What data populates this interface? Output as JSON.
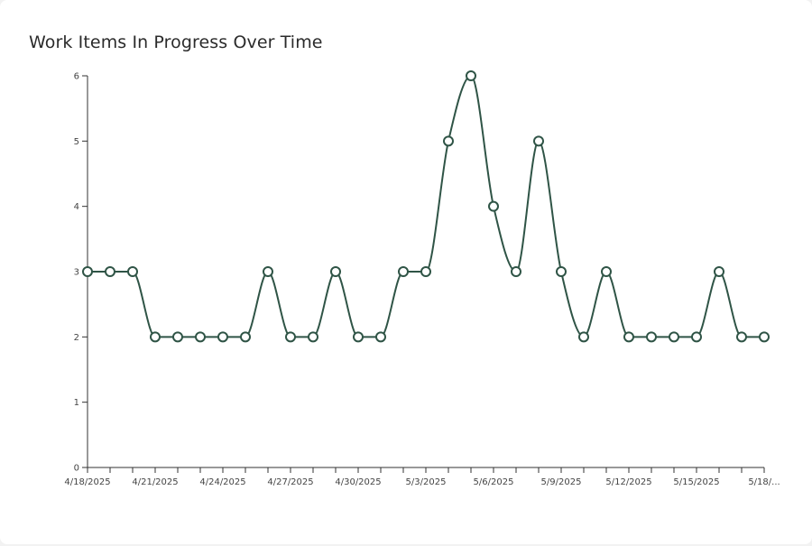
{
  "chart_data": {
    "type": "line",
    "title": "Work Items In Progress Over Time",
    "xlabel": "",
    "ylabel": "",
    "ylim": [
      0,
      6
    ],
    "y_ticks": [
      "0",
      "1",
      "2",
      "3",
      "4",
      "5",
      "6"
    ],
    "x": [
      "4/18/2025",
      "4/19/2025",
      "4/20/2025",
      "4/21/2025",
      "4/22/2025",
      "4/23/2025",
      "4/24/2025",
      "4/25/2025",
      "4/26/2025",
      "4/27/2025",
      "4/28/2025",
      "4/29/2025",
      "4/30/2025",
      "5/1/2025",
      "5/2/2025",
      "5/3/2025",
      "5/4/2025",
      "5/5/2025",
      "5/6/2025",
      "5/7/2025",
      "5/8/2025",
      "5/9/2025",
      "5/10/2025",
      "5/11/2025",
      "5/12/2025",
      "5/13/2025",
      "5/14/2025",
      "5/15/2025",
      "5/16/2025",
      "5/17/2025",
      "5/18/2025"
    ],
    "x_tick_labels": [
      "4/18/2025",
      "4/21/2025",
      "4/24/2025",
      "4/27/2025",
      "4/30/2025",
      "5/3/2025",
      "5/6/2025",
      "5/9/2025",
      "5/12/2025",
      "5/15/2025",
      "5/18/..."
    ],
    "series": [
      {
        "values": [
          3,
          3,
          3,
          2,
          2,
          2,
          2,
          2,
          3,
          2,
          2,
          3,
          2,
          2,
          3,
          3,
          5,
          6,
          4,
          3,
          5,
          3,
          2,
          3,
          2,
          2,
          2,
          2,
          3,
          2,
          2
        ]
      }
    ],
    "line_color": "#2f5446",
    "marker_fill": "#ffffff",
    "grid": false
  }
}
